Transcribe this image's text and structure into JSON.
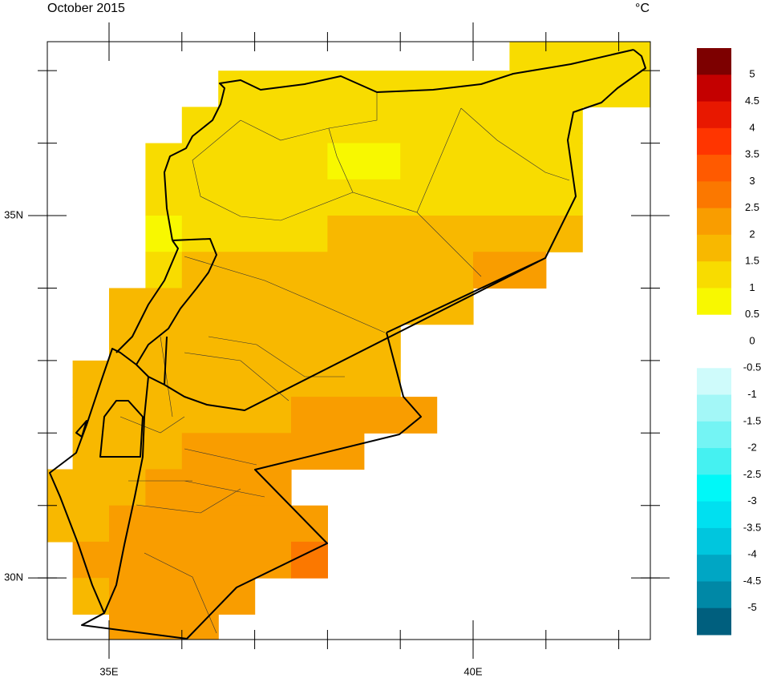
{
  "map": {
    "title": "October 2015",
    "units": "°C",
    "xlim": [
      34.152,
      42.434
    ],
    "ylim": [
      29.15,
      37.4
    ],
    "xticks": [
      {
        "value": 35,
        "label": "35E"
      },
      {
        "value": 40,
        "label": "40E"
      }
    ],
    "yticks": [
      {
        "value": 35,
        "label": "35N"
      },
      {
        "value": 30,
        "label": "30N"
      }
    ],
    "xminorticks": [
      35,
      36,
      37,
      38,
      39,
      40,
      41,
      42
    ],
    "yminorticks": [
      30,
      31,
      32,
      33,
      34,
      35,
      36,
      37
    ],
    "cells": [
      {
        "lat": [
          37,
          37.5
        ],
        "lon": [
          40.5,
          42.5
        ],
        "value": 1.25
      },
      {
        "lat": [
          36.5,
          37
        ],
        "lon": [
          36.5,
          42.5
        ],
        "value": 1.25
      },
      {
        "lat": [
          36,
          36.5
        ],
        "lon": [
          36,
          41.5
        ],
        "value": 1.25
      },
      {
        "lat": [
          35.5,
          36
        ],
        "lon": [
          35.5,
          38
        ],
        "value": 1.25
      },
      {
        "lat": [
          35.5,
          36
        ],
        "lon": [
          38,
          39
        ],
        "value": 0.75
      },
      {
        "lat": [
          35.5,
          36
        ],
        "lon": [
          39,
          41.5
        ],
        "value": 1.25
      },
      {
        "lat": [
          35,
          35.5
        ],
        "lon": [
          35.5,
          41.5
        ],
        "value": 1.25
      },
      {
        "lat": [
          34.5,
          35
        ],
        "lon": [
          35.5,
          36
        ],
        "value": 0.75
      },
      {
        "lat": [
          34.5,
          35
        ],
        "lon": [
          36,
          38
        ],
        "value": 1.25
      },
      {
        "lat": [
          34.5,
          35
        ],
        "lon": [
          38,
          41.5
        ],
        "value": 1.75
      },
      {
        "lat": [
          34,
          34.5
        ],
        "lon": [
          35.5,
          36
        ],
        "value": 1.25
      },
      {
        "lat": [
          34,
          34.5
        ],
        "lon": [
          36,
          40
        ],
        "value": 1.75
      },
      {
        "lat": [
          34,
          34.5
        ],
        "lon": [
          40,
          41
        ],
        "value": 2.25
      },
      {
        "lat": [
          33.5,
          34
        ],
        "lon": [
          35,
          40
        ],
        "value": 1.75
      },
      {
        "lat": [
          33,
          33.5
        ],
        "lon": [
          35,
          39
        ],
        "value": 1.75
      },
      {
        "lat": [
          32.5,
          33
        ],
        "lon": [
          34.5,
          39
        ],
        "value": 1.75
      },
      {
        "lat": [
          32,
          32.5
        ],
        "lon": [
          34.5,
          37.5
        ],
        "value": 1.75
      },
      {
        "lat": [
          32,
          32.5
        ],
        "lon": [
          37.5,
          39.5
        ],
        "value": 2.25
      },
      {
        "lat": [
          31.5,
          32
        ],
        "lon": [
          34.5,
          36
        ],
        "value": 1.75
      },
      {
        "lat": [
          31.5,
          32
        ],
        "lon": [
          36,
          38.5
        ],
        "value": 2.25
      },
      {
        "lat": [
          31,
          31.5
        ],
        "lon": [
          34,
          35.5
        ],
        "value": 1.75
      },
      {
        "lat": [
          31,
          31.5
        ],
        "lon": [
          35.5,
          37.5
        ],
        "value": 2.25
      },
      {
        "lat": [
          30.5,
          31
        ],
        "lon": [
          34,
          35
        ],
        "value": 1.75
      },
      {
        "lat": [
          30.5,
          31
        ],
        "lon": [
          35,
          38
        ],
        "value": 2.25
      },
      {
        "lat": [
          30,
          30.5
        ],
        "lon": [
          34.5,
          37.5
        ],
        "value": 2.25
      },
      {
        "lat": [
          30,
          30.5
        ],
        "lon": [
          37.5,
          38
        ],
        "value": 2.75
      },
      {
        "lat": [
          29.5,
          30
        ],
        "lon": [
          34.5,
          35
        ],
        "value": 1.75
      },
      {
        "lat": [
          29.5,
          30
        ],
        "lon": [
          35,
          37
        ],
        "value": 2.25
      },
      {
        "lat": [
          29,
          29.5
        ],
        "lon": [
          35,
          36.5
        ],
        "value": 2.25
      }
    ],
    "colorbar": {
      "levels": [
        5,
        4.5,
        4,
        3.5,
        3,
        2.5,
        2,
        1.5,
        1,
        0.5,
        0,
        -0.5,
        -1,
        -1.5,
        -2,
        -2.5,
        -3,
        -3.5,
        -4,
        -4.5,
        -5
      ],
      "colors": [
        "#7d0000",
        "#c40000",
        "#e81800",
        "#ff3500",
        "#ff5a00",
        "#fb7800",
        "#f99d00",
        "#f8b800",
        "#f8dc00",
        "#f8f800",
        "#ffffff",
        "#ffffff",
        "#cffbfb",
        "#a3f7f7",
        "#74f4f4",
        "#45f1f1",
        "#00f8f8",
        "#00e0f0",
        "#00c6de",
        "#00a6c4",
        "#0088a6",
        "#005f7e"
      ]
    }
  }
}
